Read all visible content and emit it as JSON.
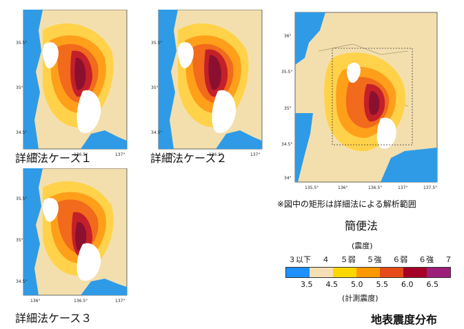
{
  "maps": {
    "case1": {
      "caption": "詳細法ケース１",
      "lat_ticks": [
        "35.5°",
        "35°",
        "34.5°"
      ],
      "lon_ticks": [
        "136°",
        "136.5°",
        "137°"
      ]
    },
    "case2": {
      "caption": "詳細法ケース２",
      "lat_ticks": [
        "35.5°",
        "35°",
        "34.5°"
      ],
      "lon_ticks": [
        "136°",
        "136.5°",
        "137°"
      ]
    },
    "case3": {
      "caption": "詳細法ケース３",
      "lat_ticks": [
        "35.5°",
        "35°",
        "34.5°"
      ],
      "lon_ticks": [
        "136°",
        "136.5°",
        "137°"
      ]
    },
    "simple": {
      "caption": "簡便法",
      "note": "※図中の矩形は詳細法による解析範囲",
      "lat_ticks": [
        "36°",
        "35.5°",
        "35°",
        "34.5°",
        "34°"
      ],
      "lon_ticks": [
        "135.5°",
        "136°",
        "136.5°",
        "137°",
        "137.5°"
      ]
    }
  },
  "legend": {
    "title": "(震度)",
    "classes": [
      "３以下",
      "４",
      "５弱",
      "５強",
      "６弱",
      "６強",
      "７"
    ],
    "values": [
      "3.5",
      "4.5",
      "5.0",
      "5.5",
      "6.0",
      "6.5"
    ],
    "subtitle": "(計測震度)",
    "colors": [
      "#1e90ff",
      "#f5deb3",
      "#ffd700",
      "#ff9800",
      "#e64a19",
      "#a50026",
      "#9c1f7a"
    ]
  },
  "figure_title": "地表震度分布",
  "palette": {
    "sea": "#2f9be6",
    "land_low": "#f3dfae",
    "i4": "#ffd24a",
    "i5w": "#ff9f1a",
    "i5s": "#f26a1b",
    "i6w": "#c4202a",
    "i6s": "#8b1030",
    "lake": "#ffffff"
  }
}
